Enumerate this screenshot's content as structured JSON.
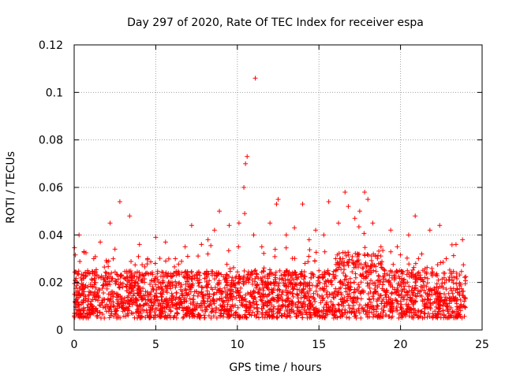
{
  "chart_data": {
    "type": "scatter",
    "title": "Day 297 of 2020, Rate Of TEC Index for receiver espa",
    "xlabel": "GPS time / hours",
    "ylabel": "ROTI / TECUs",
    "xlim": [
      0,
      25
    ],
    "ylim": [
      0,
      0.12
    ],
    "x_ticks": [
      0,
      5,
      10,
      15,
      20,
      25
    ],
    "x_tick_labels": [
      "0",
      "5",
      "10",
      "15",
      "20",
      "25"
    ],
    "y_ticks": [
      0,
      0.02,
      0.04,
      0.06,
      0.08,
      0.1,
      0.12
    ],
    "y_tick_labels": [
      "0",
      "0.02",
      "0.04",
      "0.06",
      "0.08",
      "0.1",
      "0.12"
    ],
    "grid": true,
    "marker": "+",
    "marker_color": "#ff0000",
    "series": [
      {
        "name": "ROTI",
        "band": {
          "description": "dense band of ROTI values over 0-24 h",
          "x_range": [
            0,
            24
          ],
          "typical_low": 0.005,
          "typical_high": 0.025
        },
        "points": [
          {
            "x": 0.3,
            "y": 0.04
          },
          {
            "x": 0.6,
            "y": 0.033
          },
          {
            "x": 1.2,
            "y": 0.03
          },
          {
            "x": 1.6,
            "y": 0.037
          },
          {
            "x": 2.2,
            "y": 0.045
          },
          {
            "x": 2.5,
            "y": 0.034
          },
          {
            "x": 2.8,
            "y": 0.054
          },
          {
            "x": 3.4,
            "y": 0.048
          },
          {
            "x": 4.0,
            "y": 0.036
          },
          {
            "x": 4.5,
            "y": 0.03
          },
          {
            "x": 5.0,
            "y": 0.039
          },
          {
            "x": 5.6,
            "y": 0.037
          },
          {
            "x": 6.2,
            "y": 0.03
          },
          {
            "x": 6.8,
            "y": 0.035
          },
          {
            "x": 7.2,
            "y": 0.044
          },
          {
            "x": 7.8,
            "y": 0.036
          },
          {
            "x": 8.2,
            "y": 0.038
          },
          {
            "x": 8.6,
            "y": 0.042
          },
          {
            "x": 8.9,
            "y": 0.05
          },
          {
            "x": 9.5,
            "y": 0.044
          },
          {
            "x": 10.1,
            "y": 0.045
          },
          {
            "x": 10.4,
            "y": 0.06
          },
          {
            "x": 10.5,
            "y": 0.07
          },
          {
            "x": 10.6,
            "y": 0.073
          },
          {
            "x": 10.45,
            "y": 0.049
          },
          {
            "x": 11.0,
            "y": 0.04
          },
          {
            "x": 11.1,
            "y": 0.106
          },
          {
            "x": 11.5,
            "y": 0.035
          },
          {
            "x": 12.0,
            "y": 0.045
          },
          {
            "x": 12.4,
            "y": 0.053
          },
          {
            "x": 12.5,
            "y": 0.055
          },
          {
            "x": 13.0,
            "y": 0.04
          },
          {
            "x": 13.5,
            "y": 0.043
          },
          {
            "x": 14.0,
            "y": 0.053
          },
          {
            "x": 14.4,
            "y": 0.038
          },
          {
            "x": 14.8,
            "y": 0.042
          },
          {
            "x": 15.3,
            "y": 0.04
          },
          {
            "x": 15.6,
            "y": 0.054
          },
          {
            "x": 16.2,
            "y": 0.045
          },
          {
            "x": 16.6,
            "y": 0.058
          },
          {
            "x": 16.8,
            "y": 0.052
          },
          {
            "x": 17.2,
            "y": 0.047
          },
          {
            "x": 17.5,
            "y": 0.05
          },
          {
            "x": 17.8,
            "y": 0.058
          },
          {
            "x": 18.0,
            "y": 0.055
          },
          {
            "x": 18.3,
            "y": 0.045
          },
          {
            "x": 18.8,
            "y": 0.035
          },
          {
            "x": 19.4,
            "y": 0.042
          },
          {
            "x": 19.8,
            "y": 0.035
          },
          {
            "x": 20.5,
            "y": 0.04
          },
          {
            "x": 20.9,
            "y": 0.048
          },
          {
            "x": 21.3,
            "y": 0.032
          },
          {
            "x": 21.8,
            "y": 0.042
          },
          {
            "x": 22.4,
            "y": 0.044
          },
          {
            "x": 22.8,
            "y": 0.03
          },
          {
            "x": 23.4,
            "y": 0.036
          },
          {
            "x": 23.8,
            "y": 0.038
          }
        ]
      }
    ]
  }
}
